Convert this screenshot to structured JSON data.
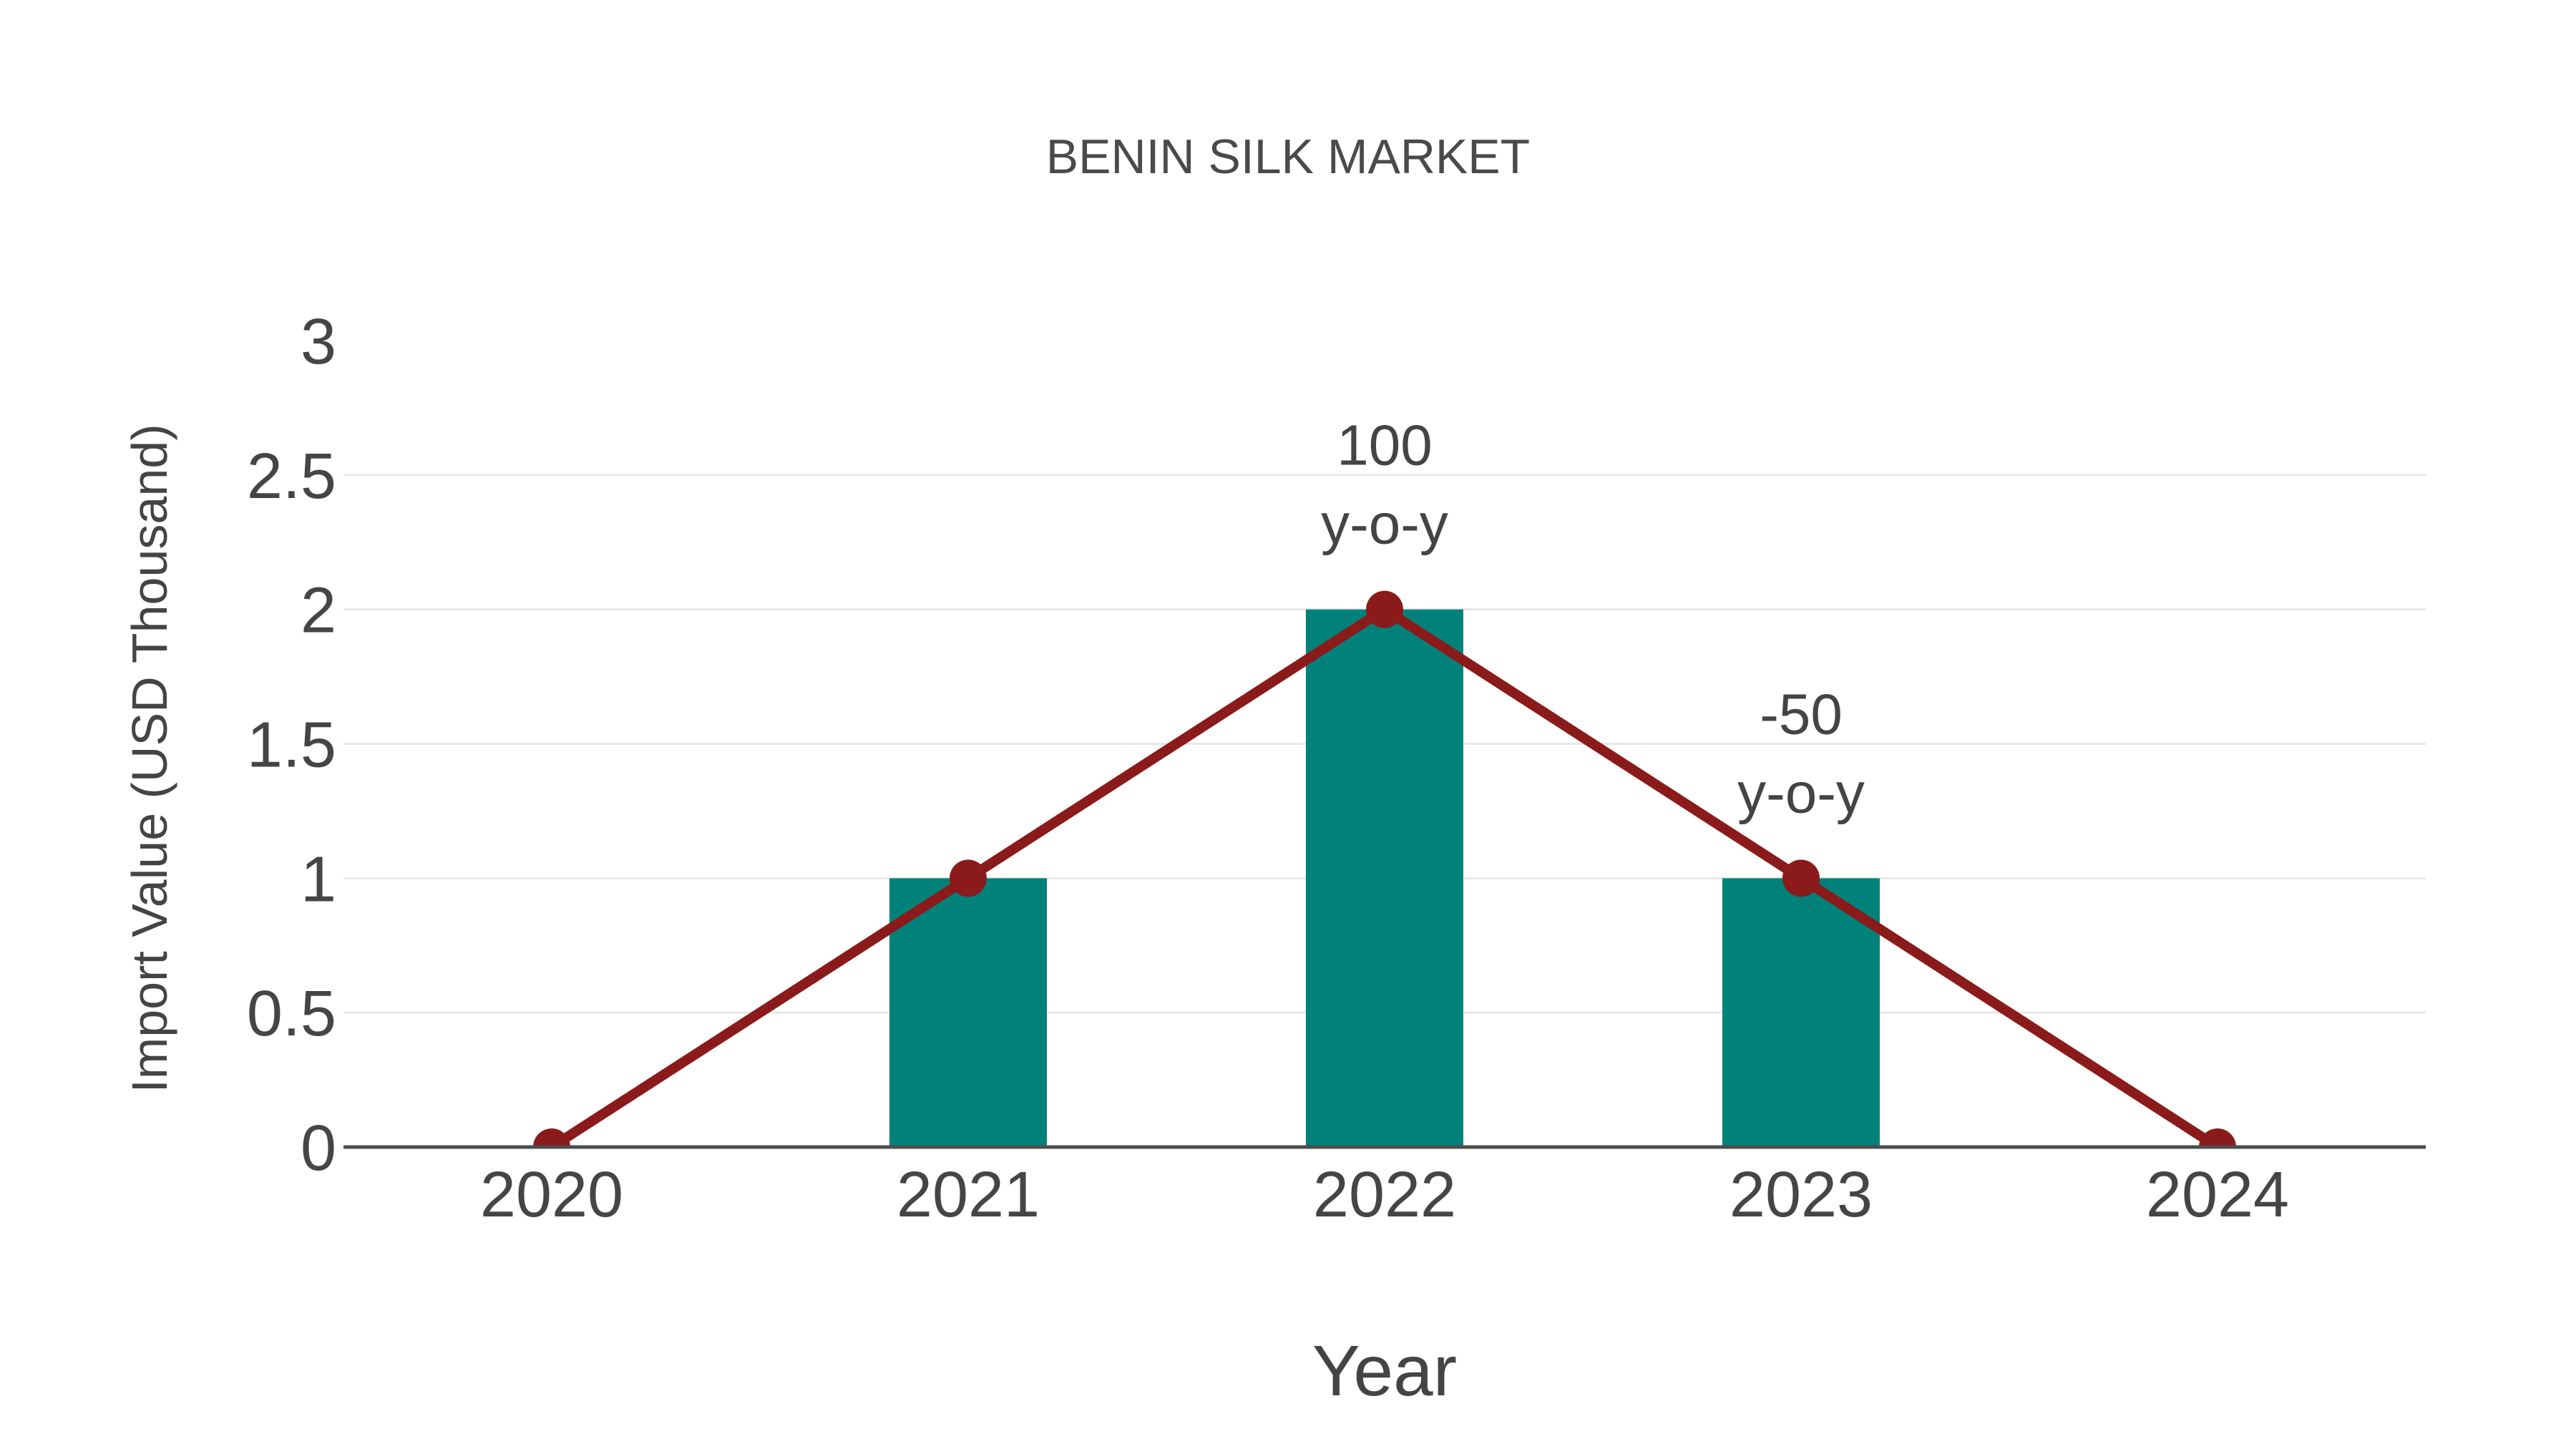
{
  "chart_data": {
    "type": "bar+line",
    "title": "BENIN SILK MARKET",
    "xlabel": "Year",
    "ylabel": "Import Value (USD Thousand)",
    "categories": [
      "2020",
      "2021",
      "2022",
      "2023",
      "2024"
    ],
    "series": [
      {
        "name": "Import Value bars",
        "type": "bar",
        "values": [
          0,
          1,
          2,
          1,
          0
        ],
        "color": "#00827B"
      },
      {
        "name": "Import Value trend",
        "type": "line",
        "values": [
          0,
          1,
          2,
          1,
          0
        ],
        "color": "#8B1A1A"
      }
    ],
    "annotations": [
      {
        "category": "2022",
        "lines": [
          "100",
          "y-o-y"
        ]
      },
      {
        "category": "2023",
        "lines": [
          "-50",
          "y-o-y"
        ]
      }
    ],
    "ylim": [
      0,
      3
    ],
    "yticks": [
      0,
      0.5,
      1,
      1.5,
      2,
      2.5,
      3
    ],
    "grid_ticks": [
      0.5,
      1,
      1.5,
      2,
      2.5
    ],
    "grid": "on",
    "legend": "none",
    "colors": {
      "bar": "#00827B",
      "line": "#8B1A1A",
      "grid": "#e8e8e8",
      "axis": "#4d4d4d",
      "text": "#444444"
    }
  }
}
